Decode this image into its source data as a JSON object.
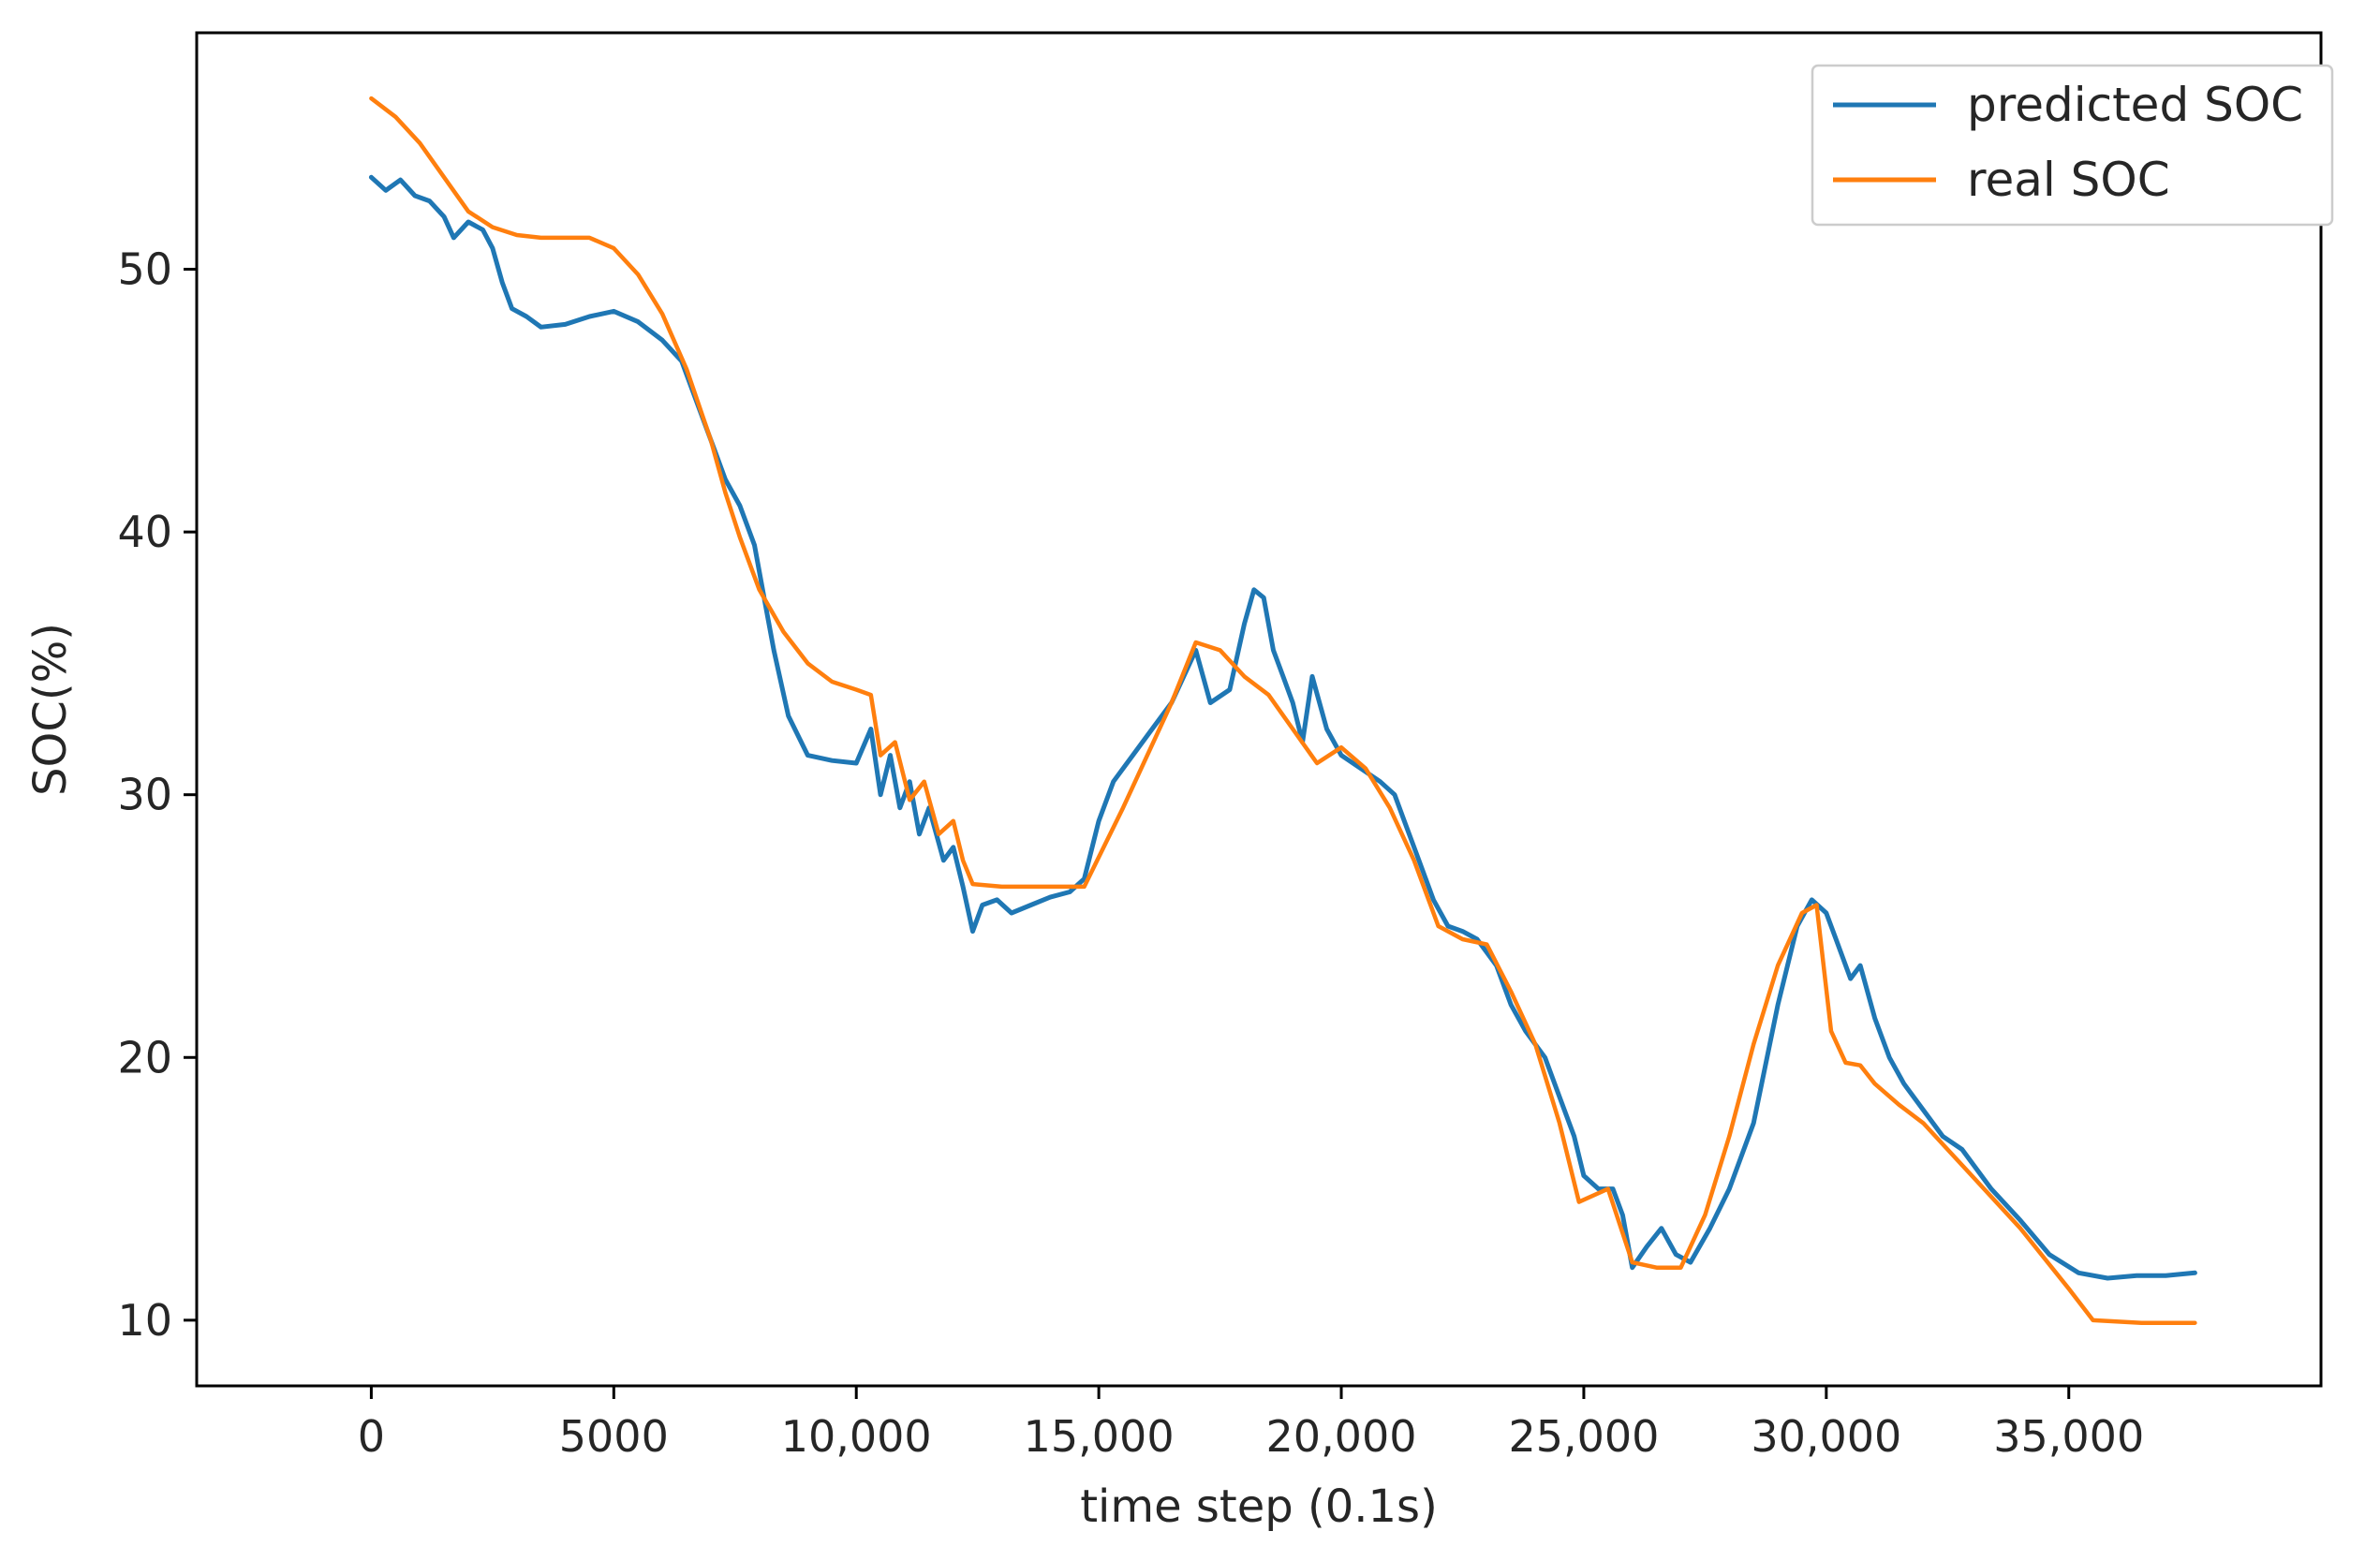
{
  "chart_data": {
    "type": "line",
    "xlabel": "time step (0.1s)",
    "ylabel": "SOC(%)",
    "xlim": [
      -3600,
      40200
    ],
    "ylim": [
      7.5,
      59.0
    ],
    "xticks": [
      {
        "value": 0,
        "label": "0"
      },
      {
        "value": 5000,
        "label": "5000"
      },
      {
        "value": 10000,
        "label": "10,000"
      },
      {
        "value": 15000,
        "label": "15,000"
      },
      {
        "value": 20000,
        "label": "20,000"
      },
      {
        "value": 25000,
        "label": "25,000"
      },
      {
        "value": 30000,
        "label": "30,000"
      },
      {
        "value": 35000,
        "label": "35,000"
      }
    ],
    "yticks": [
      {
        "value": 10,
        "label": "10"
      },
      {
        "value": 20,
        "label": "20"
      },
      {
        "value": 30,
        "label": "30"
      },
      {
        "value": 40,
        "label": "40"
      },
      {
        "value": 50,
        "label": "50"
      }
    ],
    "grid": false,
    "legend_position": "top-right",
    "series": [
      {
        "name": "predicted SOC",
        "color": "#1f77b4",
        "points": [
          [
            0,
            53.5
          ],
          [
            300,
            53.0
          ],
          [
            600,
            53.4
          ],
          [
            900,
            52.8
          ],
          [
            1200,
            52.6
          ],
          [
            1500,
            52.0
          ],
          [
            1700,
            51.2
          ],
          [
            2000,
            51.8
          ],
          [
            2300,
            51.5
          ],
          [
            2500,
            50.8
          ],
          [
            2700,
            49.5
          ],
          [
            2900,
            48.5
          ],
          [
            3200,
            48.2
          ],
          [
            3500,
            47.8
          ],
          [
            4000,
            47.9
          ],
          [
            4500,
            48.2
          ],
          [
            5000,
            48.4
          ],
          [
            5500,
            48.0
          ],
          [
            6000,
            47.3
          ],
          [
            6400,
            46.5
          ],
          [
            6800,
            44.5
          ],
          [
            7100,
            43.0
          ],
          [
            7300,
            42.0
          ],
          [
            7600,
            41.0
          ],
          [
            7900,
            39.5
          ],
          [
            8100,
            37.5
          ],
          [
            8300,
            35.5
          ],
          [
            8600,
            33.0
          ],
          [
            9000,
            31.5
          ],
          [
            9500,
            31.3
          ],
          [
            10000,
            31.2
          ],
          [
            10300,
            32.5
          ],
          [
            10500,
            30.0
          ],
          [
            10700,
            31.5
          ],
          [
            10900,
            29.5
          ],
          [
            11100,
            30.5
          ],
          [
            11300,
            28.5
          ],
          [
            11500,
            29.5
          ],
          [
            11800,
            27.5
          ],
          [
            12000,
            28.0
          ],
          [
            12200,
            26.5
          ],
          [
            12400,
            24.8
          ],
          [
            12600,
            25.8
          ],
          [
            12900,
            26.0
          ],
          [
            13200,
            25.5
          ],
          [
            13600,
            25.8
          ],
          [
            14000,
            26.1
          ],
          [
            14400,
            26.3
          ],
          [
            14700,
            26.8
          ],
          [
            15000,
            29.0
          ],
          [
            15300,
            30.5
          ],
          [
            15700,
            31.5
          ],
          [
            16100,
            32.5
          ],
          [
            16500,
            33.5
          ],
          [
            17000,
            35.5
          ],
          [
            17300,
            33.5
          ],
          [
            17700,
            34.0
          ],
          [
            18000,
            36.5
          ],
          [
            18200,
            37.8
          ],
          [
            18400,
            37.5
          ],
          [
            18600,
            35.5
          ],
          [
            18800,
            34.5
          ],
          [
            19000,
            33.5
          ],
          [
            19200,
            32.0
          ],
          [
            19400,
            34.5
          ],
          [
            19700,
            32.5
          ],
          [
            20000,
            31.5
          ],
          [
            20400,
            31.0
          ],
          [
            20800,
            30.5
          ],
          [
            21100,
            30.0
          ],
          [
            21300,
            29.0
          ],
          [
            21600,
            27.5
          ],
          [
            21900,
            26.0
          ],
          [
            22200,
            25.0
          ],
          [
            22500,
            24.8
          ],
          [
            22800,
            24.5
          ],
          [
            23200,
            23.5
          ],
          [
            23500,
            22.0
          ],
          [
            23800,
            21.0
          ],
          [
            24200,
            20.0
          ],
          [
            24500,
            18.5
          ],
          [
            24800,
            17.0
          ],
          [
            25000,
            15.5
          ],
          [
            25300,
            15.0
          ],
          [
            25600,
            15.0
          ],
          [
            25800,
            14.0
          ],
          [
            26000,
            12.0
          ],
          [
            26300,
            12.8
          ],
          [
            26600,
            13.5
          ],
          [
            26900,
            12.5
          ],
          [
            27200,
            12.2
          ],
          [
            27600,
            13.5
          ],
          [
            28000,
            15.0
          ],
          [
            28500,
            17.5
          ],
          [
            29000,
            22.0
          ],
          [
            29400,
            25.0
          ],
          [
            29700,
            26.0
          ],
          [
            30000,
            25.5
          ],
          [
            30200,
            24.5
          ],
          [
            30500,
            23.0
          ],
          [
            30700,
            23.5
          ],
          [
            31000,
            21.5
          ],
          [
            31300,
            20.0
          ],
          [
            31600,
            19.0
          ],
          [
            32000,
            18.0
          ],
          [
            32400,
            17.0
          ],
          [
            32800,
            16.5
          ],
          [
            33400,
            15.0
          ],
          [
            34000,
            13.8
          ],
          [
            34600,
            12.5
          ],
          [
            35200,
            11.8
          ],
          [
            35800,
            11.6
          ],
          [
            36400,
            11.7
          ],
          [
            37000,
            11.7
          ],
          [
            37600,
            11.8
          ]
        ]
      },
      {
        "name": "real SOC",
        "color": "#ff7f0e",
        "points": [
          [
            0,
            56.5
          ],
          [
            500,
            55.8
          ],
          [
            1000,
            54.8
          ],
          [
            1500,
            53.5
          ],
          [
            2000,
            52.2
          ],
          [
            2500,
            51.6
          ],
          [
            3000,
            51.3
          ],
          [
            3500,
            51.2
          ],
          [
            4000,
            51.2
          ],
          [
            4500,
            51.2
          ],
          [
            5000,
            50.8
          ],
          [
            5500,
            49.8
          ],
          [
            6000,
            48.3
          ],
          [
            6500,
            46.2
          ],
          [
            7000,
            43.5
          ],
          [
            7300,
            41.5
          ],
          [
            7600,
            39.8
          ],
          [
            8000,
            37.8
          ],
          [
            8500,
            36.2
          ],
          [
            9000,
            35.0
          ],
          [
            9500,
            34.3
          ],
          [
            10000,
            34.0
          ],
          [
            10300,
            33.8
          ],
          [
            10500,
            31.5
          ],
          [
            10800,
            32.0
          ],
          [
            11100,
            29.8
          ],
          [
            11400,
            30.5
          ],
          [
            11700,
            28.5
          ],
          [
            12000,
            29.0
          ],
          [
            12200,
            27.5
          ],
          [
            12400,
            26.6
          ],
          [
            13000,
            26.5
          ],
          [
            14000,
            26.5
          ],
          [
            14700,
            26.5
          ],
          [
            15500,
            29.5
          ],
          [
            16500,
            33.5
          ],
          [
            17000,
            35.8
          ],
          [
            17500,
            35.5
          ],
          [
            18000,
            34.5
          ],
          [
            18500,
            33.8
          ],
          [
            19000,
            32.5
          ],
          [
            19500,
            31.2
          ],
          [
            20000,
            31.8
          ],
          [
            20500,
            31.0
          ],
          [
            21000,
            29.5
          ],
          [
            21500,
            27.5
          ],
          [
            22000,
            25.0
          ],
          [
            22500,
            24.5
          ],
          [
            23000,
            24.3
          ],
          [
            23500,
            22.5
          ],
          [
            24000,
            20.5
          ],
          [
            24500,
            17.5
          ],
          [
            24900,
            14.5
          ],
          [
            25500,
            15.0
          ],
          [
            26000,
            12.2
          ],
          [
            26500,
            12.0
          ],
          [
            27000,
            12.0
          ],
          [
            27500,
            14.0
          ],
          [
            28000,
            17.0
          ],
          [
            28500,
            20.5
          ],
          [
            29000,
            23.5
          ],
          [
            29500,
            25.5
          ],
          [
            29800,
            25.8
          ],
          [
            30100,
            21.0
          ],
          [
            30400,
            19.8
          ],
          [
            30700,
            19.7
          ],
          [
            31000,
            19.0
          ],
          [
            31500,
            18.2
          ],
          [
            32000,
            17.5
          ],
          [
            32500,
            16.5
          ],
          [
            33000,
            15.5
          ],
          [
            34000,
            13.5
          ],
          [
            35000,
            11.2
          ],
          [
            35500,
            10.0
          ],
          [
            36500,
            9.9
          ],
          [
            37600,
            9.9
          ]
        ]
      }
    ]
  }
}
